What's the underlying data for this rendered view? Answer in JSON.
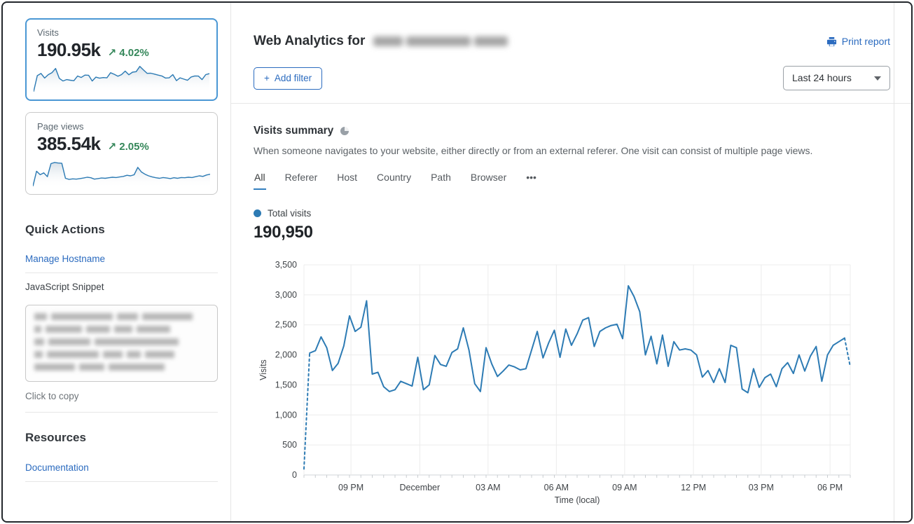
{
  "colors": {
    "link": "#2b6bbf",
    "green": "#35875a",
    "chart_line": "#2d7bb4",
    "selected_card_border": "#4a97d4",
    "tab_underline": "#3380bf",
    "legend_dot": "#2d7bb4"
  },
  "cards": [
    {
      "label": "Visits",
      "value": "190.95k",
      "arrow": "↗",
      "delta": "4.02%",
      "selected": true,
      "sparkline_source": "chart"
    },
    {
      "label": "Page views",
      "value": "385.54k",
      "arrow": "↗",
      "delta": "2.05%",
      "selected": false,
      "sparkline": [
        3,
        58,
        45,
        52,
        38,
        86,
        90,
        88,
        87,
        32,
        28,
        30,
        29,
        31,
        33,
        36,
        34,
        29,
        31,
        33,
        32,
        34,
        36,
        35,
        37,
        39,
        43,
        41,
        45,
        72,
        55,
        47,
        41,
        37,
        34,
        32,
        35,
        33,
        31,
        34,
        32,
        35,
        34,
        36,
        35,
        38,
        41,
        39,
        44,
        47
      ],
      "sparkline_max": 100
    }
  ],
  "sidebar": {
    "quick_actions_title": "Quick Actions",
    "manage_hostname": "Manage Hostname",
    "js_snippet_label": "JavaScript Snippet",
    "click_to_copy": "Click to copy",
    "resources_title": "Resources",
    "documentation": "Documentation"
  },
  "header": {
    "title": "Web Analytics for",
    "print_report": "Print report",
    "add_filter_icon": "+",
    "add_filter_label": "Add filter",
    "time_range": "Last 24 hours"
  },
  "summary": {
    "title": "Visits summary",
    "description": "When someone navigates to your website, either directly or from an external referer. One visit can consist of multiple page views.",
    "tabs": [
      "All",
      "Referer",
      "Host",
      "Country",
      "Path",
      "Browser"
    ],
    "active_tab": "All",
    "more_tab": "•••",
    "legend_label": "Total visits",
    "total": "190,950"
  },
  "chart_data": {
    "type": "line",
    "series_name": "Total visits",
    "xlabel": "Time (local)",
    "ylabel": "Visits",
    "ylim": [
      0,
      3500
    ],
    "y_tick_step": 500,
    "y_ticks": [
      "0",
      "500",
      "1,000",
      "1,500",
      "2,000",
      "2,500",
      "3,000",
      "3,500"
    ],
    "x_ticks": [
      {
        "label": "09 PM",
        "pos": 0.086
      },
      {
        "label": "December",
        "pos": 0.212
      },
      {
        "label": "03 AM",
        "pos": 0.337
      },
      {
        "label": "06 AM",
        "pos": 0.462
      },
      {
        "label": "09 AM",
        "pos": 0.587
      },
      {
        "label": "12 PM",
        "pos": 0.713
      },
      {
        "label": "03 PM",
        "pos": 0.837
      },
      {
        "label": "06 PM",
        "pos": 0.963
      }
    ],
    "interval_minutes": 15,
    "grid": true,
    "dashed_start_segments": 1,
    "dashed_end_segments": 1,
    "values": [
      100,
      2030,
      2070,
      2300,
      2120,
      1740,
      1860,
      2150,
      2650,
      2390,
      2460,
      2900,
      1680,
      1710,
      1470,
      1390,
      1420,
      1560,
      1520,
      1480,
      1960,
      1420,
      1500,
      1990,
      1840,
      1810,
      2040,
      2100,
      2450,
      2080,
      1520,
      1390,
      2120,
      1850,
      1640,
      1730,
      1830,
      1800,
      1750,
      1770,
      2080,
      2390,
      1950,
      2200,
      2410,
      1960,
      2430,
      2160,
      2350,
      2580,
      2620,
      2140,
      2390,
      2450,
      2490,
      2510,
      2270,
      3150,
      2970,
      2720,
      2000,
      2310,
      1850,
      2330,
      1810,
      2220,
      2080,
      2100,
      2080,
      2000,
      1630,
      1740,
      1540,
      1770,
      1540,
      2160,
      2120,
      1430,
      1370,
      1770,
      1460,
      1620,
      1680,
      1470,
      1770,
      1870,
      1690,
      2000,
      1730,
      1980,
      2140,
      1560,
      2000,
      2160,
      2220,
      2280,
      1800
    ]
  }
}
